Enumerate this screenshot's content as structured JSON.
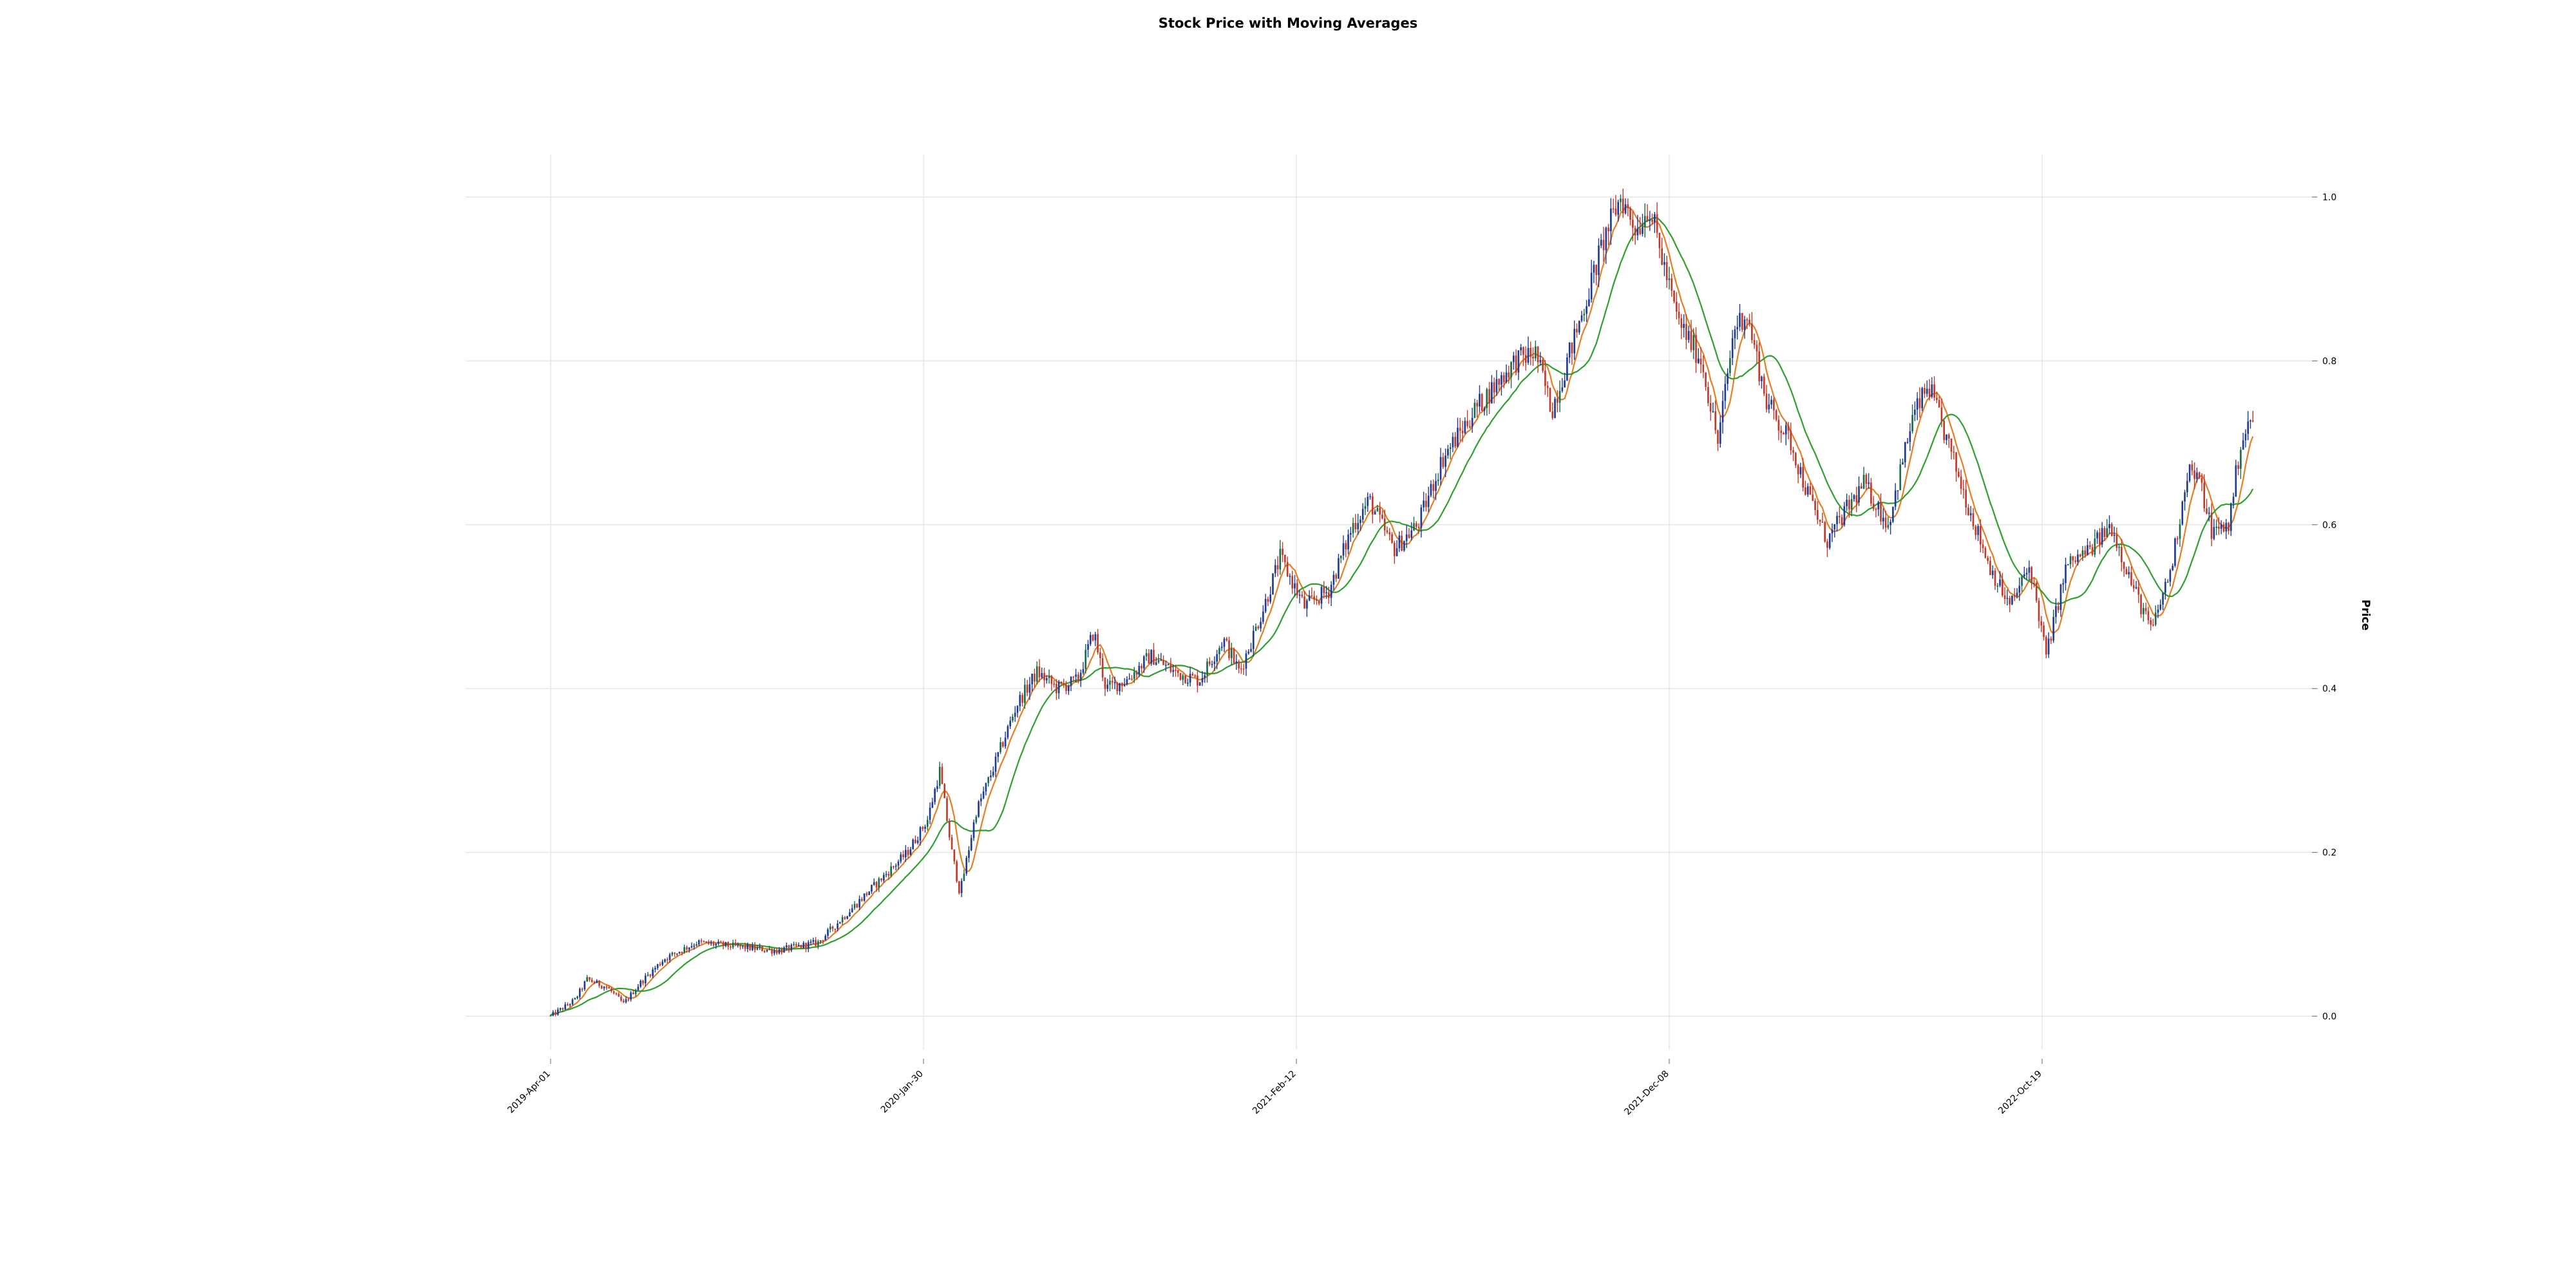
{
  "chart_data": {
    "type": "candlestick",
    "title": "Stock Price with Moving Averages",
    "xlabel": "",
    "ylabel": "Price",
    "x_tick_labels": [
      "2019-Apr-01",
      "2020-Jan-30",
      "2021-Feb-12",
      "2021-Dec-08",
      "2022-Oct-19"
    ],
    "y_ticks": [
      0.0,
      0.2,
      0.4,
      0.6,
      0.8,
      1.0
    ],
    "y_tick_labels": [
      "0.0",
      "0.2",
      "0.4",
      "0.6",
      "0.8",
      "1.0"
    ],
    "ylim": [
      -0.05,
      1.05
    ],
    "grid": true,
    "y_axis_side": "right",
    "colors": {
      "up_candle": "#1f3a93",
      "down_candle": "#c0392b",
      "neutral_candle": "#1a6b4a",
      "ma_short": "#e67e22",
      "ma_long": "#2ca02c",
      "grid": "#e6e6e6"
    },
    "price_path": [
      [
        0,
        0.0
      ],
      [
        30,
        0.02
      ],
      [
        45,
        0.045
      ],
      [
        70,
        0.035
      ],
      [
        90,
        0.015
      ],
      [
        110,
        0.04
      ],
      [
        140,
        0.07
      ],
      [
        180,
        0.09
      ],
      [
        230,
        0.085
      ],
      [
        280,
        0.08
      ],
      [
        330,
        0.09
      ],
      [
        370,
        0.13
      ],
      [
        410,
        0.17
      ],
      [
        440,
        0.2
      ],
      [
        465,
        0.24
      ],
      [
        480,
        0.3
      ],
      [
        495,
        0.2
      ],
      [
        505,
        0.15
      ],
      [
        525,
        0.25
      ],
      [
        545,
        0.3
      ],
      [
        575,
        0.38
      ],
      [
        600,
        0.42
      ],
      [
        625,
        0.4
      ],
      [
        650,
        0.41
      ],
      [
        670,
        0.47
      ],
      [
        685,
        0.4
      ],
      [
        710,
        0.41
      ],
      [
        740,
        0.44
      ],
      [
        770,
        0.42
      ],
      [
        800,
        0.41
      ],
      [
        830,
        0.46
      ],
      [
        850,
        0.42
      ],
      [
        880,
        0.5
      ],
      [
        900,
        0.56
      ],
      [
        930,
        0.5
      ],
      [
        960,
        0.52
      ],
      [
        990,
        0.6
      ],
      [
        1010,
        0.63
      ],
      [
        1040,
        0.57
      ],
      [
        1070,
        0.6
      ],
      [
        1100,
        0.68
      ],
      [
        1140,
        0.74
      ],
      [
        1190,
        0.8
      ],
      [
        1215,
        0.81
      ],
      [
        1235,
        0.74
      ],
      [
        1270,
        0.85
      ],
      [
        1300,
        0.95
      ],
      [
        1320,
        1.0
      ],
      [
        1340,
        0.96
      ],
      [
        1355,
        0.99
      ],
      [
        1370,
        0.93
      ],
      [
        1390,
        0.85
      ],
      [
        1420,
        0.8
      ],
      [
        1440,
        0.7
      ],
      [
        1460,
        0.84
      ],
      [
        1475,
        0.86
      ],
      [
        1500,
        0.75
      ],
      [
        1530,
        0.7
      ],
      [
        1550,
        0.64
      ],
      [
        1575,
        0.58
      ],
      [
        1600,
        0.62
      ],
      [
        1620,
        0.65
      ],
      [
        1650,
        0.6
      ],
      [
        1680,
        0.73
      ],
      [
        1700,
        0.77
      ],
      [
        1730,
        0.68
      ],
      [
        1750,
        0.62
      ],
      [
        1775,
        0.55
      ],
      [
        1800,
        0.5
      ],
      [
        1825,
        0.55
      ],
      [
        1845,
        0.44
      ],
      [
        1870,
        0.55
      ],
      [
        1900,
        0.57
      ],
      [
        1925,
        0.6
      ],
      [
        1950,
        0.53
      ],
      [
        1975,
        0.47
      ],
      [
        2000,
        0.55
      ],
      [
        2020,
        0.67
      ],
      [
        2035,
        0.65
      ],
      [
        2050,
        0.59
      ],
      [
        2070,
        0.6
      ],
      [
        2085,
        0.7
      ],
      [
        2100,
        0.73
      ]
    ],
    "x_tick_day_index": [
      0,
      460,
      920,
      1380,
      1840
    ],
    "num_days": 2100
  }
}
